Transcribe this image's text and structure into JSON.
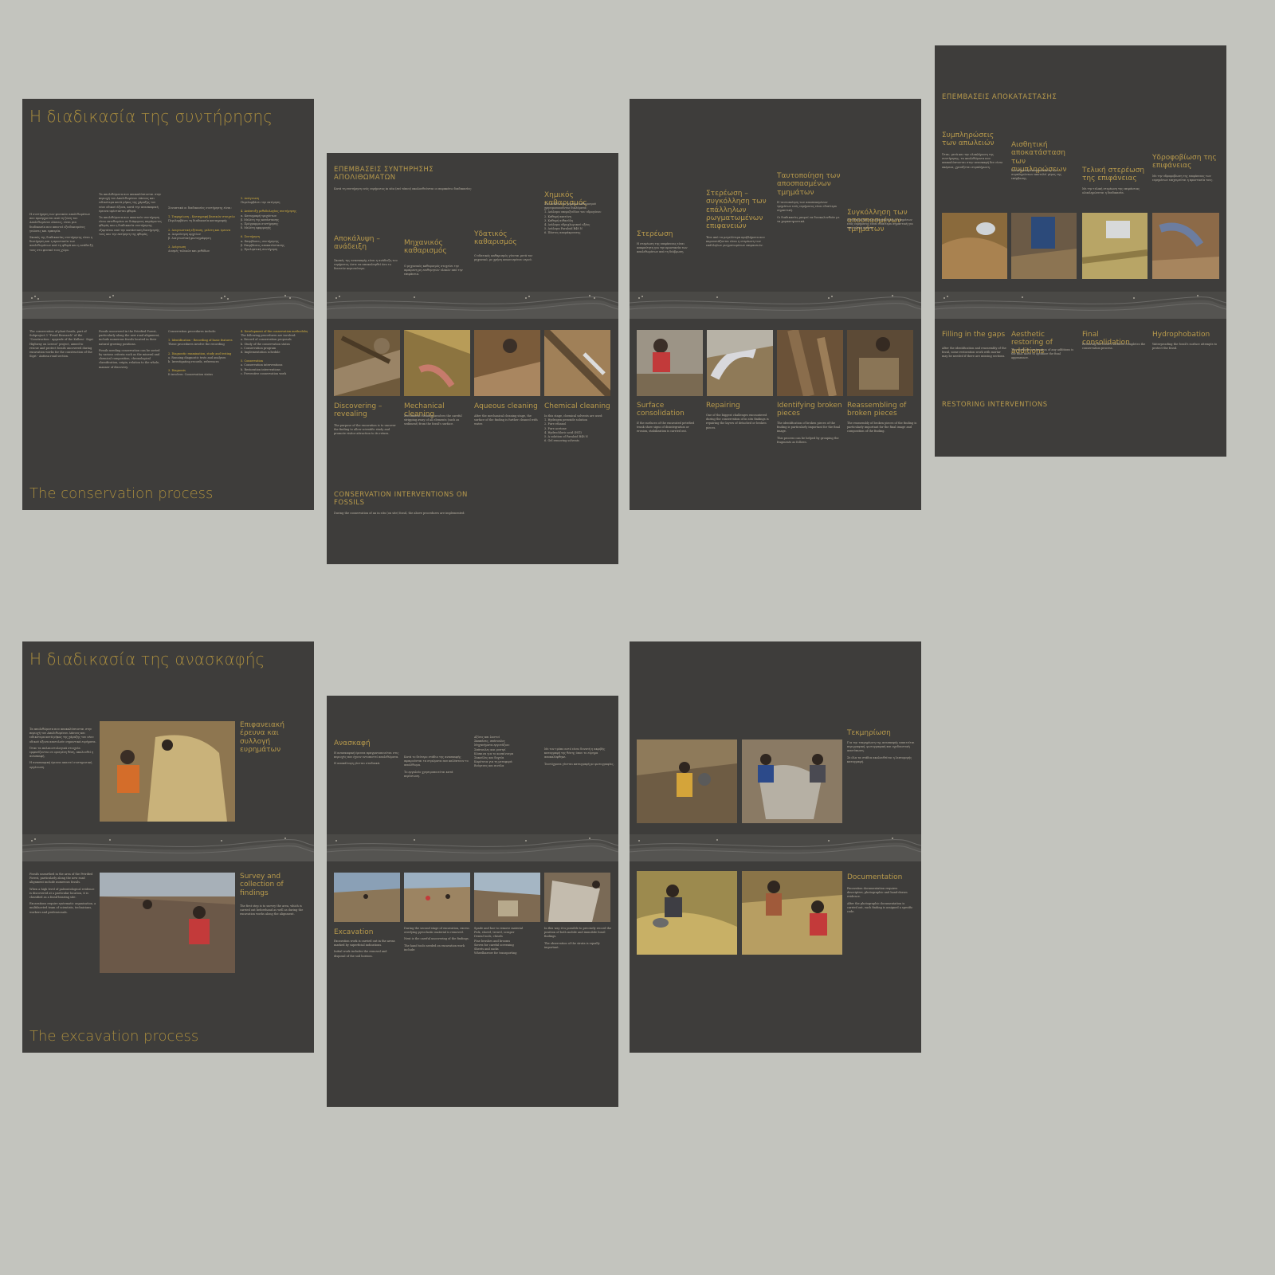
{
  "p1": {
    "title_gr": "Η διαδικασία της συντήρησης",
    "title_en": "The conservation process",
    "subhead_intro": "Συνοπτικά οι διαδικασίες συντήρησης είναι:",
    "step_1_gr": "1. Τεκμηρίωση – Καταγραφή βασικών στοιχείων",
    "step_2_gr": "2. Διαγνωστική εξέταση, μελέτη και έρευνα",
    "step_3_gr": "3. Διάγνωση",
    "step_4_gr": "4. Ανάπτυξη μεθοδολογίας συντήρησης",
    "intro_en": "Conservation procedures include:",
    "step_1_en": "1. Identification - Recording of basic features",
    "step_2_en": "2. Diagnostic examination, study and testing",
    "step_3_en": "3. Diagnosis",
    "step_4_en": "4. Development of the conservation methodology"
  },
  "p2": {
    "heading_gr": "ΕΠΕΜΒΑΣΕΙΣ ΣΥΝΤΗΡΗΣΗΣ ΑΠΟΛΙΘΩΜΑΤΩΝ",
    "intro_gr": "Κατά τη συντήρηση ενός ευρήματος in situ (επί τόπου) ακολουθούνται οι παρακάτω διαδικασίες:",
    "col1_gr": "Αποκάλυψη – ανάδειξη",
    "col2_gr": "Μηχανικός καθαρισμός",
    "col3_gr": "Υδατικός καθαρισμός",
    "col4_gr": "Χημικός καθαρισμός",
    "col1_en": "Discovering – revealing",
    "col2_en": "Mechanical cleaning",
    "col3_en": "Aqueous cleaning",
    "col4_en": "Chemical cleaning",
    "heading_en": "CONSERVATION INTERVENTIONS ON FOSSILS",
    "intro_en": "During the conservation of an in situ (on site) fossil, the above procedures are implemented:"
  },
  "p3": {
    "col1_gr": "Στερέωση",
    "col2_gr": "Στερέωση – συγκόλληση των επάλληλων ρωγματωμένων επιφανειών",
    "col3_gr": "Ταυτοποίηση των αποσπασμένων τμημάτων",
    "col4_gr": "Συγκόλληση των αποσπασμένων τμημάτων",
    "col1_en": "Surface consolidation",
    "col2_en": "Repairing",
    "col3_en": "Identifying broken pieces",
    "col4_en": "Reassembling of broken pieces"
  },
  "p4": {
    "heading_gr": "ΕΠΕΜΒΑΣΕΙΣ ΑΠΟΚΑΤΑΣΤΑΣΗΣ",
    "col1_gr": "Συμπληρώσεις των απωλειών",
    "col2_gr": "Αισθητική αποκατάσταση των συμπληρώσεων",
    "col3_gr": "Τελική στερέωση της επιφάνειας",
    "col4_gr": "Υδροφοβίωση της επιφάνειας",
    "col1_en": "Filling in the gaps",
    "col2_en": "Aesthetic restoring of additions",
    "col3_en": "Final consolidation",
    "col4_en": "Hydrophobation",
    "heading_en": "RESTORING INTERVENTIONS"
  },
  "p5": {
    "title_gr": "Η διαδικασία της ανασκαφής",
    "title_en": "The excavation process",
    "sub_gr": "Επιφανειακή έρευνα και συλλογή ευρημάτων",
    "sub_en": "Survey and collection of findings"
  },
  "p6": {
    "title_gr": "Ανασκαφή",
    "title_en": "Excavation"
  },
  "p7": {
    "title_gr": "Τεκμηρίωση",
    "title_en": "Documentation"
  },
  "colors": {
    "panel": "#3e3d3b",
    "accent": "#b89a4c",
    "background": "#c3c4be"
  }
}
